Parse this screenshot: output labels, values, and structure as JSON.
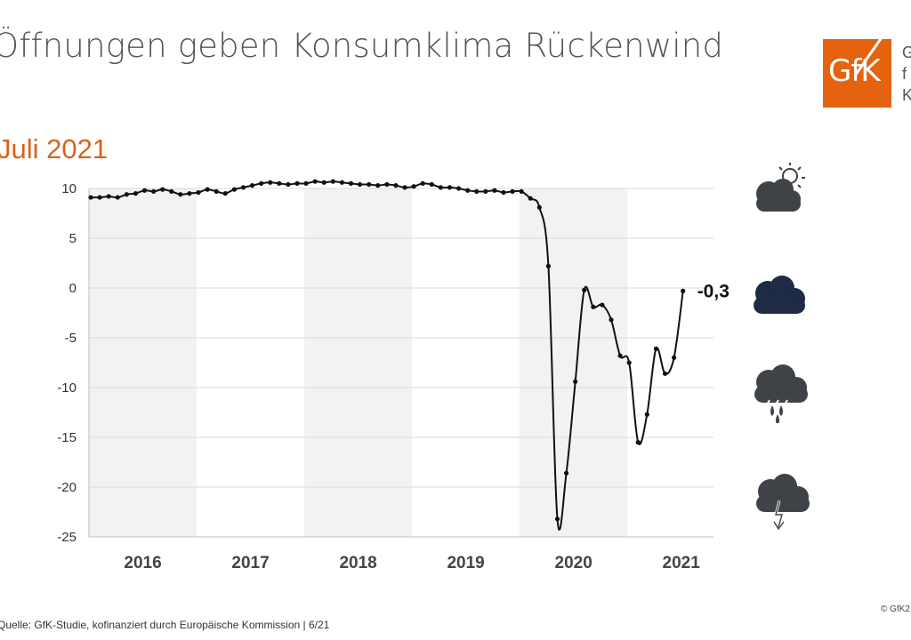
{
  "header": {
    "title": "Öffnungen geben Konsumklima Rückenwind",
    "subtitle": "Juli 2021"
  },
  "logo": {
    "text": "GfK",
    "side_lines": [
      "G",
      "f",
      "K"
    ]
  },
  "footer": {
    "source": "Quelle: GfK-Studie, kofinanziert durch Europäische Kommission | 6/21",
    "copyright": "© GfK2"
  },
  "colors": {
    "line": "#111111",
    "band": "#f2f2f2",
    "grid": "#d9d9d9",
    "accent": "#e5620f",
    "icon_gray": "#3f4348",
    "icon_navy": "#1f2a44"
  },
  "icons": [
    {
      "name": "sun-cloud-icon",
      "meaning": "heiter"
    },
    {
      "name": "cloud-icon",
      "meaning": "bewölkt"
    },
    {
      "name": "rain-cloud-icon",
      "meaning": "Regen"
    },
    {
      "name": "storm-cloud-icon",
      "meaning": "Gewitter"
    }
  ],
  "chart_data": {
    "type": "line",
    "title": "",
    "xlabel": "",
    "ylabel": "",
    "ylim": [
      -25,
      10
    ],
    "yticks": [
      10,
      5,
      0,
      -5,
      -10,
      -15,
      -20,
      -25
    ],
    "grid": true,
    "years": [
      "2016",
      "2017",
      "2018",
      "2019",
      "2020",
      "2021"
    ],
    "shaded_years": [
      "2016",
      "2018",
      "2020"
    ],
    "start_month": "2016-01",
    "last_value_label": "-0,3",
    "values": [
      9.1,
      9.1,
      9.2,
      9.1,
      9.4,
      9.5,
      9.8,
      9.7,
      9.9,
      9.7,
      9.4,
      9.5,
      9.6,
      9.9,
      9.7,
      9.5,
      9.9,
      10.1,
      10.3,
      10.5,
      10.6,
      10.5,
      10.4,
      10.5,
      10.5,
      10.7,
      10.6,
      10.7,
      10.6,
      10.5,
      10.4,
      10.4,
      10.3,
      10.4,
      10.3,
      10.1,
      10.2,
      10.5,
      10.4,
      10.1,
      10.1,
      10.0,
      9.8,
      9.7,
      9.7,
      9.8,
      9.6,
      9.7,
      9.7,
      9.0,
      8.1,
      2.2,
      -23.2,
      -18.6,
      -9.4,
      -0.2,
      -1.9,
      -1.7,
      -3.2,
      -6.8,
      -7.5,
      -15.5,
      -12.7,
      -6.1,
      -8.6,
      -7.0,
      -0.3
    ]
  }
}
